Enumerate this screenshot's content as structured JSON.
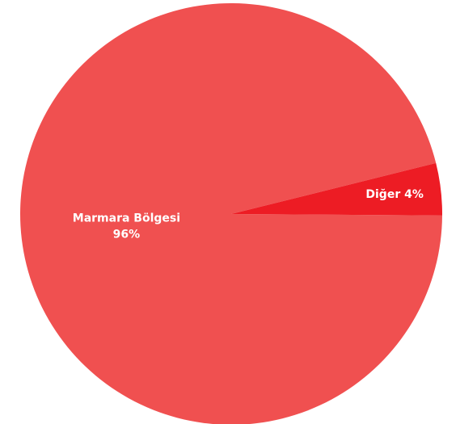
{
  "chart_data": {
    "type": "pie",
    "categories": [
      "Marmara Bölgesi",
      "Diğer"
    ],
    "values": [
      96,
      4
    ],
    "value_labels": [
      "96%",
      "4%"
    ],
    "colors": [
      "#f05050",
      "#ed1c24"
    ]
  }
}
